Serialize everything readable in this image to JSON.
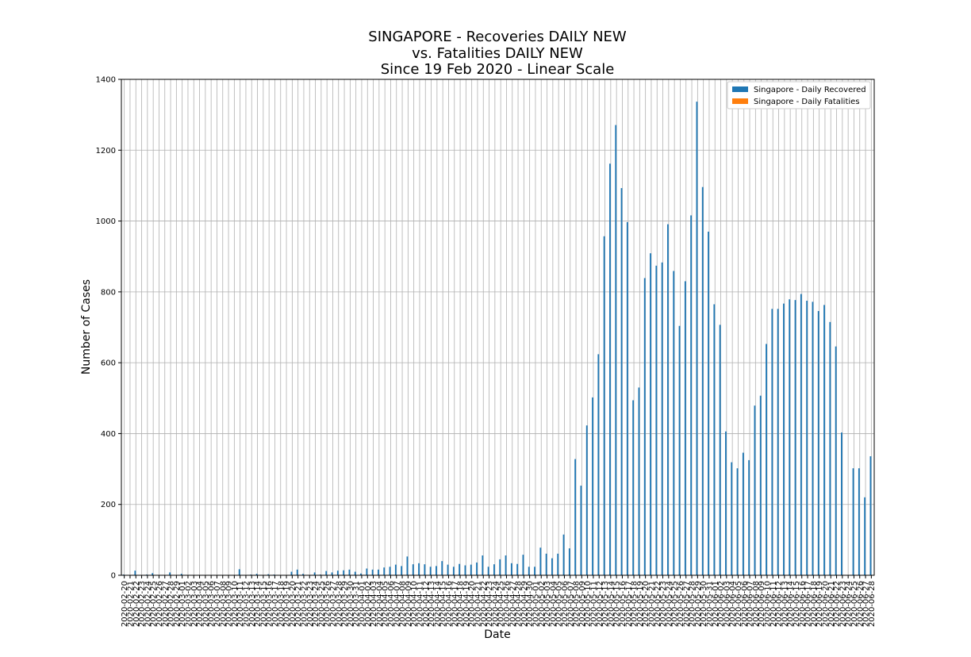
{
  "chart_data": {
    "type": "bar",
    "title": [
      "SINGAPORE - Recoveries DAILY NEW",
      "vs. Fatalities DAILY NEW",
      "Since 19 Feb 2020 - Linear Scale"
    ],
    "xlabel": "Date",
    "ylabel": "Number of Cases",
    "ylim": [
      0,
      1400
    ],
    "yticks": [
      0,
      200,
      400,
      600,
      800,
      1000,
      1200,
      1400
    ],
    "grid": true,
    "legend_position": "top-right",
    "start_date": "2020-02-20",
    "end_date": "2020-06-28",
    "series": [
      {
        "name": "Singapore - Daily Recovered",
        "color": "#1f77b4",
        "values": [
          2,
          0,
          13,
          0,
          2,
          6,
          0,
          0,
          8,
          0,
          4,
          0,
          0,
          0,
          0,
          0,
          0,
          0,
          0,
          0,
          17,
          0,
          2,
          4,
          0,
          3,
          2,
          0,
          0,
          10,
          16,
          4,
          0,
          8,
          2,
          12,
          8,
          13,
          14,
          16,
          10,
          5,
          19,
          16,
          16,
          22,
          24,
          30,
          26,
          53,
          31,
          34,
          31,
          24,
          26,
          40,
          30,
          24,
          32,
          28,
          30,
          36,
          56,
          24,
          31,
          45,
          56,
          34,
          32,
          58,
          24,
          24,
          78,
          61,
          48,
          61,
          115,
          76,
          328,
          253,
          423,
          502,
          624,
          957,
          1162,
          1271,
          1093,
          997,
          494,
          530,
          839,
          909,
          874,
          883,
          991,
          859,
          704,
          830,
          1016,
          1337,
          1096,
          970,
          765,
          707,
          406,
          319,
          302,
          346,
          325,
          479,
          507,
          653,
          752,
          752,
          767,
          779,
          777,
          794,
          775,
          772,
          746,
          763,
          715,
          646,
          403,
          0,
          302,
          302,
          220,
          336,
          342
        ],
        "extra_y_hint": null
      },
      {
        "name": "Singapore - Daily Fatalities",
        "color": "#ff7f0e",
        "values": [
          0,
          0,
          0,
          0,
          0,
          0,
          0,
          0,
          0,
          0,
          0,
          0,
          0,
          0,
          0,
          0,
          0,
          0,
          0,
          0,
          0,
          0,
          0,
          0,
          0,
          0,
          0,
          0,
          0,
          0,
          0,
          0,
          0,
          0,
          0,
          0,
          0,
          0,
          0,
          0,
          0,
          0,
          0,
          0,
          0,
          0,
          0,
          0,
          0,
          0,
          0,
          0,
          0,
          0,
          0,
          0,
          0,
          0,
          0,
          0,
          0,
          0,
          0,
          0,
          0,
          0,
          0,
          0,
          0,
          0,
          0,
          0,
          0,
          0,
          0,
          0,
          0,
          0,
          0,
          0,
          0,
          0,
          0,
          0,
          0,
          0,
          0,
          0,
          0,
          0,
          0,
          0,
          0,
          0,
          0,
          0,
          0,
          0,
          0,
          0,
          0,
          0,
          0,
          0,
          0,
          0,
          0,
          0,
          0,
          0,
          0,
          0,
          0,
          0,
          0,
          0,
          0,
          0,
          0,
          0,
          0,
          0,
          0,
          0,
          0,
          0,
          0,
          0,
          0,
          0,
          0
        ]
      }
    ]
  }
}
